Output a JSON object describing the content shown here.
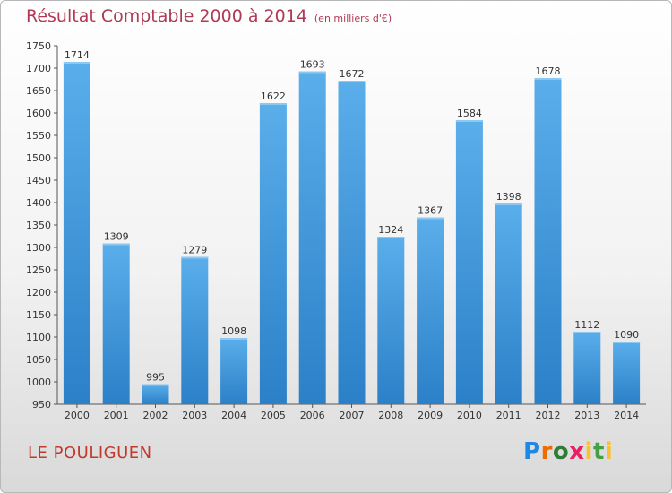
{
  "title": "Résultat Comptable 2000 à 2014",
  "unit": "(en milliers d'€)",
  "city": "LE POULIGUEN",
  "logo": "Proxiti",
  "colors": {
    "title": "#b03a55",
    "bar_light": "#5aaeea",
    "bar_dark": "#2b80c8",
    "city": "#c0392b"
  },
  "chart_data": {
    "type": "bar",
    "categories": [
      "2000",
      "2001",
      "2002",
      "2003",
      "2004",
      "2005",
      "2006",
      "2007",
      "2008",
      "2009",
      "2010",
      "2011",
      "2012",
      "2013",
      "2014"
    ],
    "values": [
      1714,
      1309,
      995,
      1279,
      1098,
      1622,
      1693,
      1672,
      1324,
      1367,
      1584,
      1398,
      1678,
      1112,
      1090
    ],
    "title": "Résultat Comptable 2000 à 2014",
    "xlabel": "",
    "ylabel": "",
    "ylim": [
      950,
      1750
    ],
    "yticks": [
      950,
      1000,
      1050,
      1100,
      1150,
      1200,
      1250,
      1300,
      1350,
      1400,
      1450,
      1500,
      1550,
      1600,
      1650,
      1700,
      1750
    ],
    "grid": false,
    "legend": "none"
  }
}
